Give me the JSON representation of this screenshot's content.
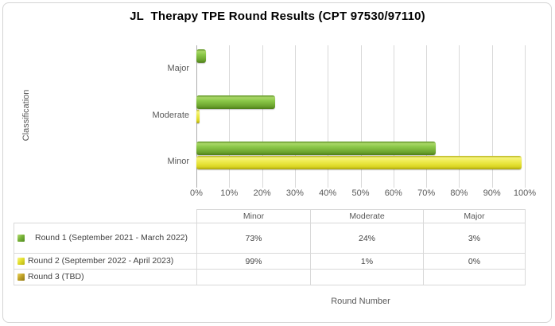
{
  "title": "JL  Therapy TPE Round Results (CPT 97530/97110)",
  "colors": {
    "series_green": "#7ab43a",
    "series_yellow": "#e4e02f",
    "series_gold": "#c3a52a",
    "gridline": "#d9d9d9",
    "axis_text": "#595959",
    "title_text": "#000000",
    "table_border": "#d9d9d9"
  },
  "chart_data": {
    "type": "bar",
    "orientation": "horizontal",
    "title": "JL  Therapy TPE Round Results (CPT 97530/97110)",
    "xlabel": "Round Number",
    "ylabel": "Classification",
    "categories": [
      "Major",
      "Moderate",
      "Minor"
    ],
    "xlim": [
      0,
      100
    ],
    "xticks": [
      "0%",
      "10%",
      "20%",
      "30%",
      "40%",
      "50%",
      "60%",
      "70%",
      "80%",
      "90%",
      "100%"
    ],
    "grid": true,
    "legend_position": "table-left",
    "series": [
      {
        "name": "Round 1 (September 2021 - March 2022)",
        "color": "#7ab43a",
        "values": [
          3,
          24,
          73
        ]
      },
      {
        "name": "Round 2 (September 2022 - April 2023)",
        "color": "#e4e02f",
        "values": [
          0,
          1,
          99
        ]
      },
      {
        "name": "Round 3 (TBD)",
        "color": "#c3a52a",
        "values": [
          null,
          null,
          null
        ]
      }
    ],
    "table": {
      "columns": [
        "Minor",
        "Moderate",
        "Major"
      ],
      "rows": [
        {
          "label": "Round 1 (September 2021 - March 2022)",
          "wrap": true,
          "cells": [
            "73%",
            "24%",
            "3%"
          ]
        },
        {
          "label": "Round 2 (September 2022 - April 2023)",
          "wrap": false,
          "cells": [
            "99%",
            "1%",
            "0%"
          ]
        },
        {
          "label": "Round 3 (TBD)",
          "wrap": false,
          "cells": [
            "",
            "",
            ""
          ]
        }
      ]
    }
  }
}
